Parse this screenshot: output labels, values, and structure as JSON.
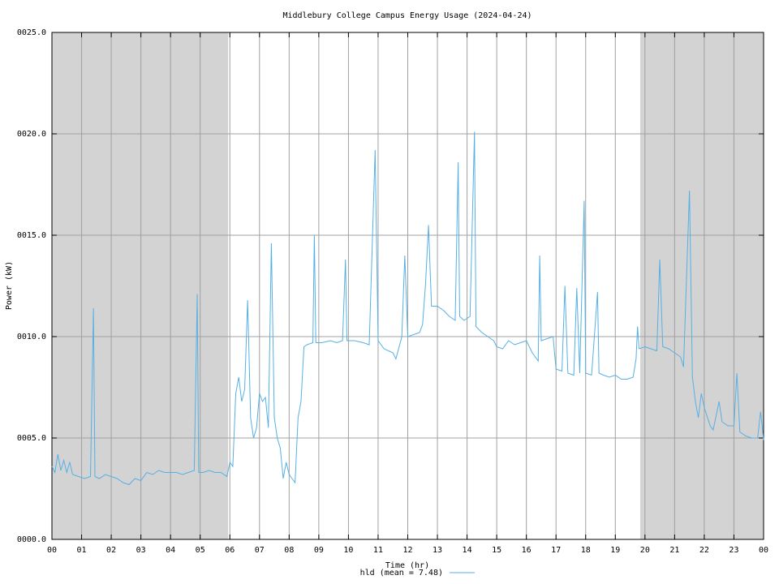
{
  "chart_data": {
    "type": "line",
    "title": "Middlebury College Campus Energy Usage (2024-04-24)",
    "xlabel": "Time (hr)",
    "ylabel": "Power (kW)",
    "xlim": [
      0,
      24
    ],
    "ylim": [
      0,
      25
    ],
    "xticks": [
      {
        "value": 0,
        "label": "00"
      },
      {
        "value": 1,
        "label": "01"
      },
      {
        "value": 2,
        "label": "02"
      },
      {
        "value": 3,
        "label": "03"
      },
      {
        "value": 4,
        "label": "04"
      },
      {
        "value": 5,
        "label": "05"
      },
      {
        "value": 6,
        "label": "06"
      },
      {
        "value": 7,
        "label": "07"
      },
      {
        "value": 8,
        "label": "08"
      },
      {
        "value": 9,
        "label": "09"
      },
      {
        "value": 10,
        "label": "10"
      },
      {
        "value": 11,
        "label": "11"
      },
      {
        "value": 12,
        "label": "12"
      },
      {
        "value": 13,
        "label": "13"
      },
      {
        "value": 14,
        "label": "14"
      },
      {
        "value": 15,
        "label": "15"
      },
      {
        "value": 16,
        "label": "16"
      },
      {
        "value": 17,
        "label": "17"
      },
      {
        "value": 18,
        "label": "18"
      },
      {
        "value": 19,
        "label": "19"
      },
      {
        "value": 20,
        "label": "20"
      },
      {
        "value": 21,
        "label": "21"
      },
      {
        "value": 22,
        "label": "22"
      },
      {
        "value": 23,
        "label": "23"
      },
      {
        "value": 24,
        "label": "00"
      }
    ],
    "yticks": [
      {
        "value": 0,
        "label": "0000.0"
      },
      {
        "value": 5,
        "label": "0005.0"
      },
      {
        "value": 10,
        "label": "0010.0"
      },
      {
        "value": 15,
        "label": "0015.0"
      },
      {
        "value": 20,
        "label": "0020.0"
      },
      {
        "value": 25,
        "label": "0025.0"
      }
    ],
    "grid": true,
    "night_shading": [
      [
        0,
        5.94
      ],
      [
        19.84,
        24
      ]
    ],
    "shading_color": "#d3d3d3",
    "legend": "bottom",
    "x": [
      0.0,
      0.1,
      0.2,
      0.3,
      0.4,
      0.5,
      0.6,
      0.7,
      0.9,
      1.1,
      1.3,
      1.4,
      1.45,
      1.6,
      1.8,
      2.0,
      2.2,
      2.4,
      2.6,
      2.8,
      3.0,
      3.2,
      3.4,
      3.6,
      3.8,
      4.0,
      4.2,
      4.4,
      4.6,
      4.8,
      4.9,
      4.95,
      5.1,
      5.3,
      5.5,
      5.7,
      5.9,
      6.0,
      6.1,
      6.2,
      6.3,
      6.4,
      6.5,
      6.6,
      6.7,
      6.8,
      6.9,
      7.0,
      7.1,
      7.2,
      7.3,
      7.4,
      7.5,
      7.6,
      7.7,
      7.8,
      7.9,
      8.0,
      8.1,
      8.2,
      8.3,
      8.4,
      8.5,
      8.6,
      8.8,
      8.85,
      8.9,
      9.1,
      9.4,
      9.6,
      9.8,
      9.9,
      9.95,
      10.2,
      10.5,
      10.7,
      10.9,
      11.0,
      11.2,
      11.5,
      11.6,
      11.8,
      11.9,
      12.0,
      12.2,
      12.4,
      12.5,
      12.6,
      12.7,
      12.8,
      13.0,
      13.2,
      13.4,
      13.6,
      13.7,
      13.75,
      13.9,
      14.1,
      14.25,
      14.3,
      14.5,
      14.7,
      14.9,
      15.0,
      15.2,
      15.4,
      15.6,
      15.8,
      16.0,
      16.2,
      16.4,
      16.45,
      16.5,
      16.7,
      16.9,
      17.0,
      17.2,
      17.3,
      17.4,
      17.6,
      17.7,
      17.8,
      17.95,
      18.0,
      18.2,
      18.4,
      18.45,
      18.6,
      18.8,
      19.0,
      19.2,
      19.4,
      19.6,
      19.7,
      19.75,
      19.8,
      20.0,
      20.2,
      20.4,
      20.5,
      20.6,
      20.8,
      21.0,
      21.2,
      21.3,
      21.5,
      21.6,
      21.7,
      21.8,
      21.9,
      22.0,
      22.2,
      22.3,
      22.5,
      22.6,
      22.8,
      23.0,
      23.1,
      23.2,
      23.4,
      23.6,
      23.8,
      23.9,
      24.0
    ],
    "series": [
      {
        "name": "hld (mean = 7.48)",
        "color": "#56b0e4",
        "values": [
          3.6,
          3.3,
          4.2,
          3.4,
          3.9,
          3.3,
          3.8,
          3.2,
          3.1,
          3.0,
          3.1,
          11.4,
          3.1,
          3.0,
          3.2,
          3.1,
          3.0,
          2.8,
          2.7,
          3.0,
          2.9,
          3.3,
          3.2,
          3.4,
          3.3,
          3.3,
          3.3,
          3.2,
          3.3,
          3.4,
          12.1,
          3.3,
          3.3,
          3.4,
          3.3,
          3.3,
          3.1,
          3.8,
          3.6,
          7.2,
          8.0,
          6.8,
          7.4,
          11.8,
          6.0,
          5.0,
          5.5,
          7.2,
          6.8,
          7.0,
          5.5,
          14.6,
          6.0,
          5.0,
          4.5,
          3.0,
          3.8,
          3.2,
          3.0,
          2.8,
          6.0,
          6.8,
          9.5,
          9.6,
          9.7,
          15.0,
          9.7,
          9.7,
          9.8,
          9.7,
          9.8,
          13.8,
          9.8,
          9.8,
          9.7,
          9.6,
          19.2,
          9.8,
          9.4,
          9.2,
          8.9,
          10.0,
          14.0,
          10.0,
          10.1,
          10.2,
          10.6,
          12.6,
          15.5,
          11.5,
          11.5,
          11.3,
          11.0,
          10.8,
          18.6,
          11.0,
          10.8,
          11.0,
          20.1,
          10.5,
          10.2,
          10.0,
          9.8,
          9.5,
          9.4,
          9.8,
          9.6,
          9.7,
          9.8,
          9.2,
          8.8,
          14.0,
          9.8,
          9.9,
          10.0,
          8.4,
          8.3,
          12.5,
          8.2,
          8.1,
          12.4,
          8.2,
          16.7,
          8.2,
          8.1,
          12.2,
          8.2,
          8.1,
          8.0,
          8.1,
          7.9,
          7.9,
          8.0,
          8.9,
          10.5,
          9.4,
          9.5,
          9.4,
          9.3,
          13.8,
          9.5,
          9.4,
          9.2,
          9.0,
          8.5,
          17.2,
          8.0,
          6.8,
          6.0,
          7.2,
          6.5,
          5.6,
          5.4,
          6.8,
          5.8,
          5.6,
          5.6,
          8.2,
          5.3,
          5.1,
          5.0,
          5.0,
          6.3,
          4.9
        ]
      }
    ]
  }
}
